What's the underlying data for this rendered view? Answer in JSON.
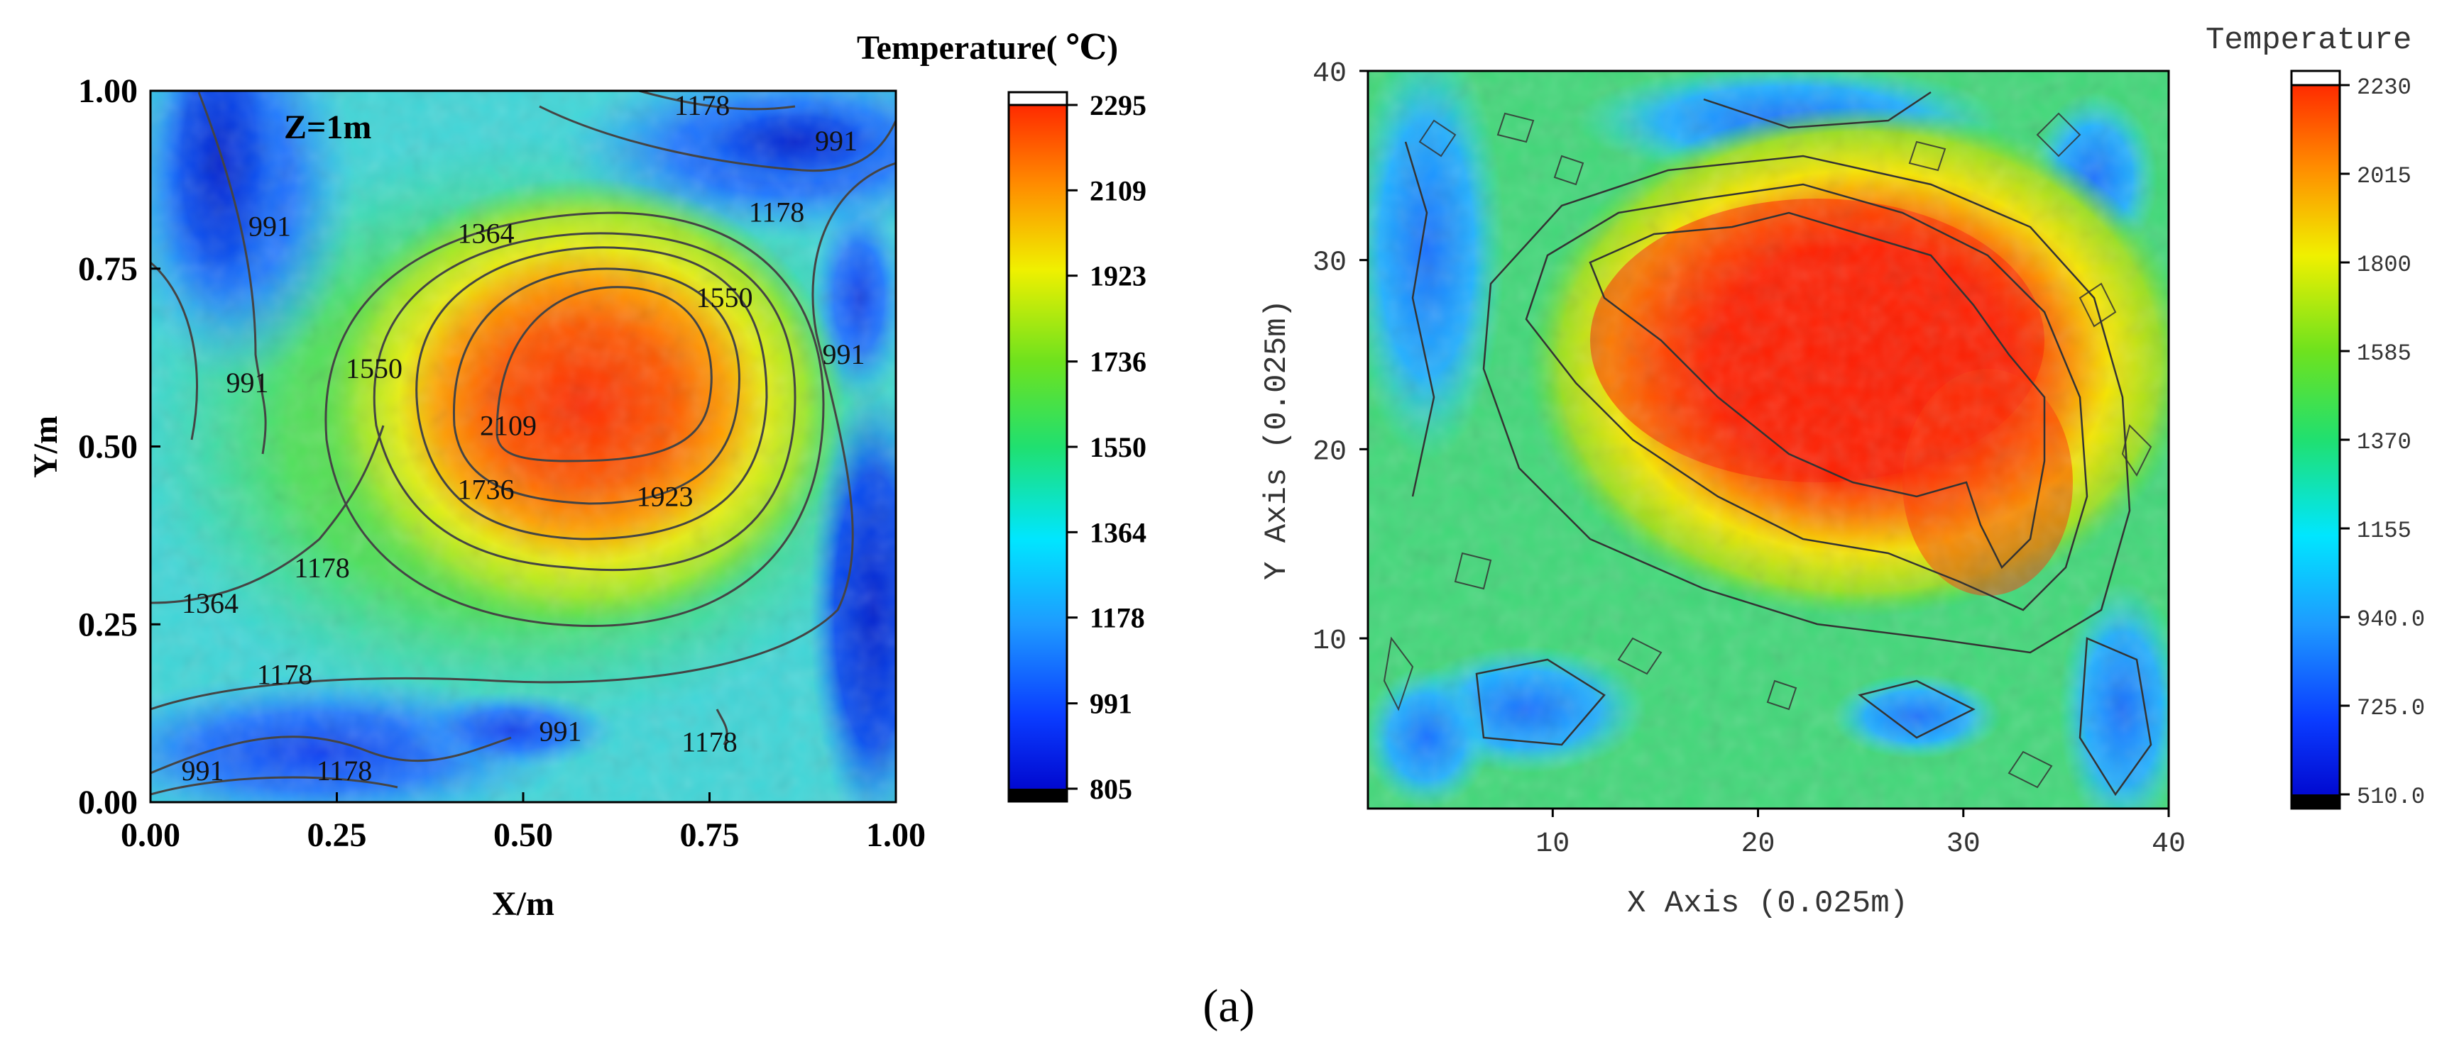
{
  "caption": "(a)",
  "chart_data": [
    {
      "type": "heatmap",
      "subtype": "contour",
      "title": "",
      "annotation": "Z=1m",
      "xlabel": "X/m",
      "ylabel": "Y/m",
      "xlim": [
        0,
        1
      ],
      "ylim": [
        0,
        1
      ],
      "xticks": [
        "0.00",
        "0.25",
        "0.50",
        "0.75",
        "1.00"
      ],
      "yticks": [
        "0.00",
        "0.25",
        "0.50",
        "0.75",
        "1.00"
      ],
      "colorbar": {
        "title": "Temperature( ℃)",
        "min": 805,
        "max": 2295,
        "ticks": [
          "805",
          "991",
          "1178",
          "1364",
          "1550",
          "1736",
          "1923",
          "2109",
          "2295"
        ]
      },
      "hot_spot": {
        "x": 0.63,
        "y": 0.65,
        "value": 2200
      },
      "contour_labels": [
        {
          "text": "1178",
          "x": 0.74,
          "y": 0.98
        },
        {
          "text": "991",
          "x": 0.92,
          "y": 0.93
        },
        {
          "text": "991",
          "x": 0.16,
          "y": 0.81
        },
        {
          "text": "1364",
          "x": 0.45,
          "y": 0.8
        },
        {
          "text": "1178",
          "x": 0.84,
          "y": 0.83
        },
        {
          "text": "1550",
          "x": 0.77,
          "y": 0.71
        },
        {
          "text": "991",
          "x": 0.13,
          "y": 0.59
        },
        {
          "text": "1550",
          "x": 0.3,
          "y": 0.61
        },
        {
          "text": "991",
          "x": 0.93,
          "y": 0.63
        },
        {
          "text": "2109",
          "x": 0.48,
          "y": 0.53
        },
        {
          "text": "1736",
          "x": 0.45,
          "y": 0.44
        },
        {
          "text": "1923",
          "x": 0.69,
          "y": 0.43
        },
        {
          "text": "1178",
          "x": 0.23,
          "y": 0.33
        },
        {
          "text": "1364",
          "x": 0.08,
          "y": 0.28
        },
        {
          "text": "1178",
          "x": 0.18,
          "y": 0.18
        },
        {
          "text": "991",
          "x": 0.55,
          "y": 0.1
        },
        {
          "text": "1178",
          "x": 0.75,
          "y": 0.085
        },
        {
          "text": "991",
          "x": 0.07,
          "y": 0.045
        },
        {
          "text": "1178",
          "x": 0.26,
          "y": 0.045
        }
      ]
    },
    {
      "type": "heatmap",
      "subtype": "contour",
      "title": "",
      "xlabel": "X Axis (0.025m)",
      "ylabel": "Y Axis (0.025m)",
      "xlim": [
        1,
        40
      ],
      "ylim": [
        1,
        40
      ],
      "xticks": [
        "10",
        "20",
        "30",
        "40"
      ],
      "yticks": [
        "10",
        "20",
        "30",
        "40"
      ],
      "colorbar": {
        "title": "Temperature",
        "min": 510,
        "max": 2230,
        "ticks": [
          "510.0",
          "725.0",
          "940.0",
          "1155",
          "1370",
          "1585",
          "1800",
          "2015",
          "2230"
        ]
      },
      "hot_spot": {
        "x": 22,
        "y": 27,
        "value": 2150
      }
    }
  ]
}
